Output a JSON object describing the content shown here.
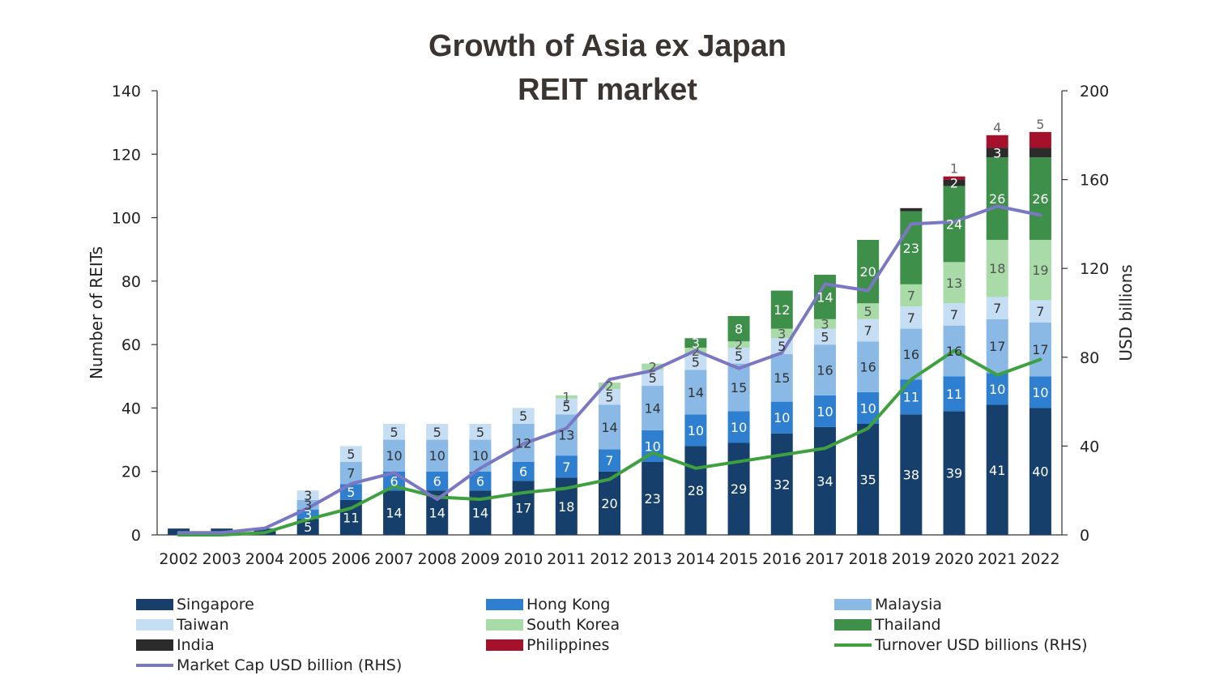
{
  "title_line1": "Growth of Asia ex Japan",
  "title_line2": "REIT market",
  "chart_data": {
    "type": "bar",
    "stacked": true,
    "categories": [
      "2002",
      "2003",
      "2004",
      "2005",
      "2006",
      "2007",
      "2008",
      "2009",
      "2010",
      "2011",
      "2012",
      "2013",
      "2014",
      "2015",
      "2016",
      "2017",
      "2018",
      "2019",
      "2020",
      "2021",
      "2022"
    ],
    "ylabel": "Number of REITs",
    "y2label": "USD billions",
    "ylim": [
      0,
      140
    ],
    "yticks": [
      0,
      20,
      40,
      60,
      80,
      100,
      120,
      140
    ],
    "y2lim": [
      0,
      200
    ],
    "y2ticks": [
      0,
      40,
      80,
      120,
      160,
      200
    ],
    "grid": false,
    "legend_position": "bottom",
    "series": [
      {
        "name": "Singapore",
        "color": "#173f6b",
        "label_color": "#ffffff",
        "values": [
          2,
          2,
          2,
          5,
          11,
          14,
          14,
          14,
          17,
          18,
          20,
          23,
          28,
          29,
          32,
          34,
          35,
          38,
          39,
          41,
          40
        ],
        "labels": [
          null,
          null,
          null,
          "5",
          "11",
          "14",
          "14",
          "14",
          "17",
          "18",
          "20",
          "23",
          "28",
          "29",
          "32",
          "34",
          "35",
          "38",
          "39",
          "41",
          "40"
        ]
      },
      {
        "name": "Hong Kong",
        "color": "#2f7fd0",
        "label_color": "#ffffff",
        "values": [
          0,
          0,
          0,
          3,
          5,
          6,
          6,
          6,
          6,
          7,
          7,
          10,
          10,
          10,
          10,
          10,
          10,
          11,
          11,
          10,
          10
        ],
        "labels": [
          null,
          null,
          null,
          "3",
          "5",
          "6",
          "6",
          "6",
          "6",
          "7",
          "7",
          "10",
          "10",
          "10",
          "10",
          "10",
          "10",
          "11",
          "11",
          "10",
          "10"
        ]
      },
      {
        "name": "Malaysia",
        "color": "#8ab9e6",
        "label_color": "#333333",
        "values": [
          0,
          0,
          0,
          3,
          7,
          10,
          10,
          10,
          12,
          13,
          14,
          14,
          14,
          15,
          15,
          16,
          16,
          16,
          16,
          17,
          17
        ],
        "labels": [
          null,
          null,
          null,
          "3",
          "7",
          "10",
          "10",
          "10",
          "12",
          "13",
          "14",
          "14",
          "14",
          "15",
          "15",
          "16",
          "16",
          "16",
          "16",
          "17",
          "17"
        ]
      },
      {
        "name": "Taiwan",
        "color": "#c6def3",
        "label_color": "#333333",
        "values": [
          0,
          0,
          0,
          3,
          5,
          5,
          5,
          5,
          5,
          5,
          5,
          5,
          5,
          5,
          5,
          5,
          7,
          7,
          7,
          7,
          7
        ],
        "labels": [
          null,
          null,
          null,
          "3",
          "5",
          "5",
          "5",
          "5",
          "5",
          "5",
          "5",
          "5",
          "5",
          "5",
          "5",
          "5",
          "7",
          "7",
          "7",
          "7",
          "7"
        ]
      },
      {
        "name": "South Korea",
        "color": "#a8dba8",
        "label_color": "#555555",
        "values": [
          0,
          0,
          0,
          0,
          0,
          0,
          0,
          0,
          0,
          1,
          2,
          2,
          2,
          2,
          3,
          3,
          5,
          7,
          13,
          18,
          19
        ],
        "labels": [
          null,
          null,
          null,
          null,
          null,
          null,
          null,
          null,
          null,
          "1",
          "2",
          "2",
          "2",
          "2",
          "3",
          "3",
          "5",
          "7",
          "13",
          "18",
          "19"
        ]
      },
      {
        "name": "Thailand",
        "color": "#3e8f4a",
        "label_color": "#ffffff",
        "values": [
          0,
          0,
          0,
          0,
          0,
          0,
          0,
          0,
          0,
          0,
          0,
          0,
          3,
          8,
          12,
          14,
          20,
          23,
          24,
          26,
          26
        ],
        "labels": [
          null,
          null,
          null,
          null,
          null,
          null,
          null,
          null,
          null,
          null,
          null,
          null,
          "3",
          "8",
          "12",
          "14",
          "20",
          "23",
          "24",
          "26",
          "26"
        ]
      },
      {
        "name": "India",
        "color": "#2b2b2b",
        "label_color": "#ffffff",
        "values": [
          0,
          0,
          0,
          0,
          0,
          0,
          0,
          0,
          0,
          0,
          0,
          0,
          0,
          0,
          0,
          0,
          0,
          1,
          2,
          3,
          3
        ],
        "labels": [
          null,
          null,
          null,
          null,
          null,
          null,
          null,
          null,
          null,
          null,
          null,
          null,
          null,
          null,
          null,
          null,
          null,
          null,
          "2",
          "3",
          null
        ]
      },
      {
        "name": "Philippines",
        "color": "#a5102a",
        "label_color": "#666666",
        "values": [
          0,
          0,
          0,
          0,
          0,
          0,
          0,
          0,
          0,
          0,
          0,
          0,
          0,
          0,
          0,
          0,
          0,
          0,
          1,
          4,
          5
        ],
        "labels": [
          null,
          null,
          null,
          null,
          null,
          null,
          null,
          null,
          null,
          null,
          null,
          null,
          null,
          null,
          null,
          null,
          null,
          null,
          "1",
          "4",
          "5"
        ]
      }
    ],
    "lines": [
      {
        "name": "Turnover USD billions (RHS)",
        "axis": "right",
        "color": "#3fa03f",
        "values": [
          0,
          0,
          1,
          7,
          12,
          22,
          17,
          16,
          19,
          21,
          25,
          37,
          30,
          33,
          36,
          39,
          48,
          70,
          83,
          72,
          79
        ]
      },
      {
        "name": "Market Cap USD billion (RHS)",
        "axis": "right",
        "color": "#7a78c2",
        "values": [
          1,
          1,
          3,
          12,
          23,
          28,
          16,
          30,
          41,
          48,
          70,
          74,
          83,
          75,
          82,
          113,
          110,
          140,
          141,
          148,
          144
        ]
      }
    ]
  },
  "legend": [
    {
      "name": "Singapore",
      "kind": "bar",
      "color": "#173f6b"
    },
    {
      "name": "Hong Kong",
      "kind": "bar",
      "color": "#2f7fd0"
    },
    {
      "name": "Malaysia",
      "kind": "bar",
      "color": "#8ab9e6"
    },
    {
      "name": "Taiwan",
      "kind": "bar",
      "color": "#c6def3"
    },
    {
      "name": "South Korea",
      "kind": "bar",
      "color": "#a8dba8"
    },
    {
      "name": "Thailand",
      "kind": "bar",
      "color": "#3e8f4a"
    },
    {
      "name": "India",
      "kind": "bar",
      "color": "#2b2b2b"
    },
    {
      "name": "Philippines",
      "kind": "bar",
      "color": "#a5102a"
    },
    {
      "name": "Turnover USD billions (RHS)",
      "kind": "line",
      "color": "#3fa03f"
    },
    {
      "name": "Market Cap USD billion (RHS)",
      "kind": "line",
      "color": "#7a78c2"
    }
  ]
}
